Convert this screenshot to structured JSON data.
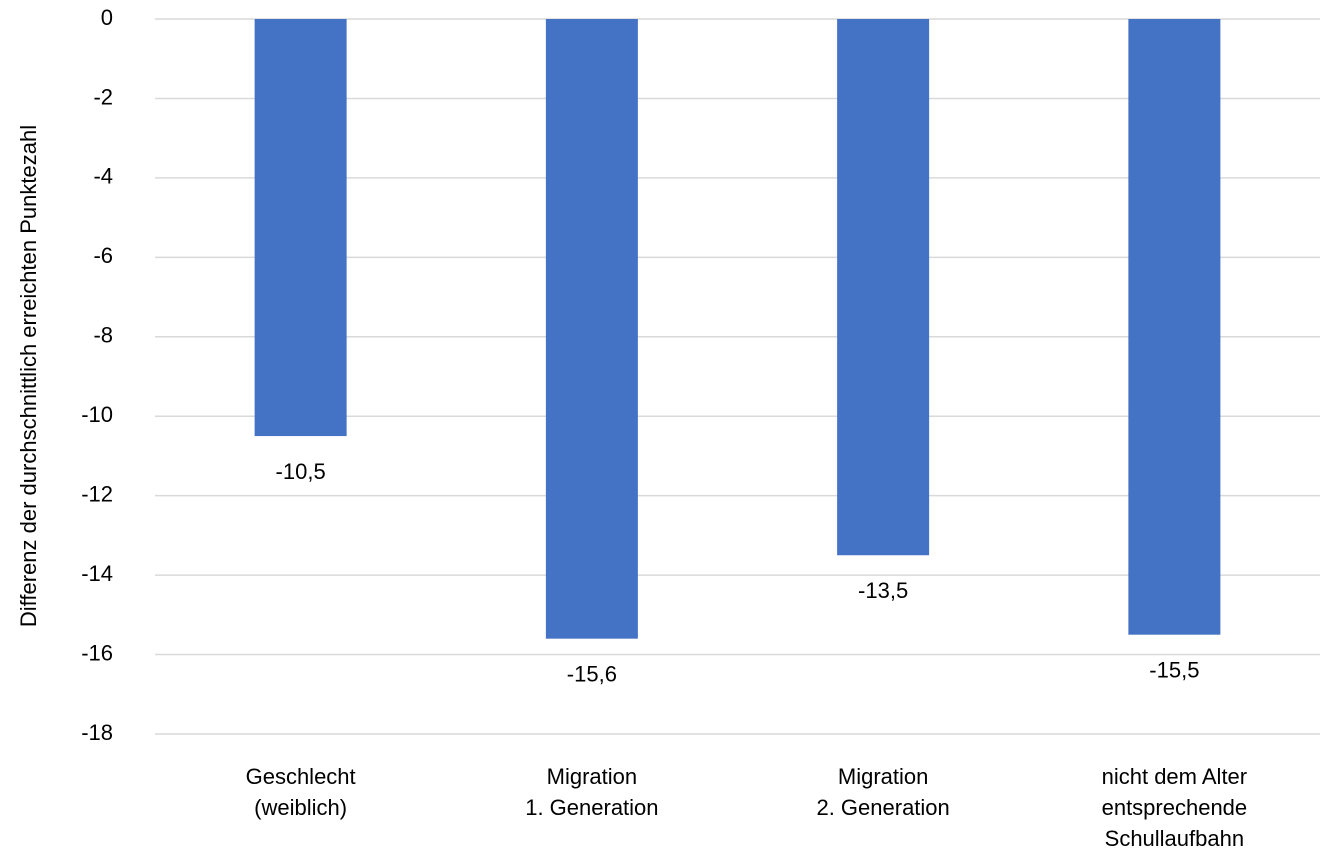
{
  "chart_data": {
    "type": "bar",
    "y_label": "Differenz der durchschnittlich erreichten Punktezahl",
    "categories": [
      [
        "Geschlecht",
        "(weiblich)"
      ],
      [
        "Migration",
        "1. Generation"
      ],
      [
        "Migration",
        "2. Generation"
      ],
      [
        "nicht dem Alter",
        "entsprechende",
        "Schullaufbahn"
      ]
    ],
    "values": [
      -10.5,
      -15.6,
      -13.5,
      -15.5
    ],
    "value_labels": [
      "-10,5",
      "-15,6",
      "-13,5",
      "-15,5"
    ],
    "color": "#4472c4",
    "ylim": [
      -18,
      0
    ],
    "yticks": [
      0,
      -2,
      -4,
      -6,
      -8,
      -10,
      -12,
      -14,
      -16,
      -18
    ],
    "grid": true
  }
}
